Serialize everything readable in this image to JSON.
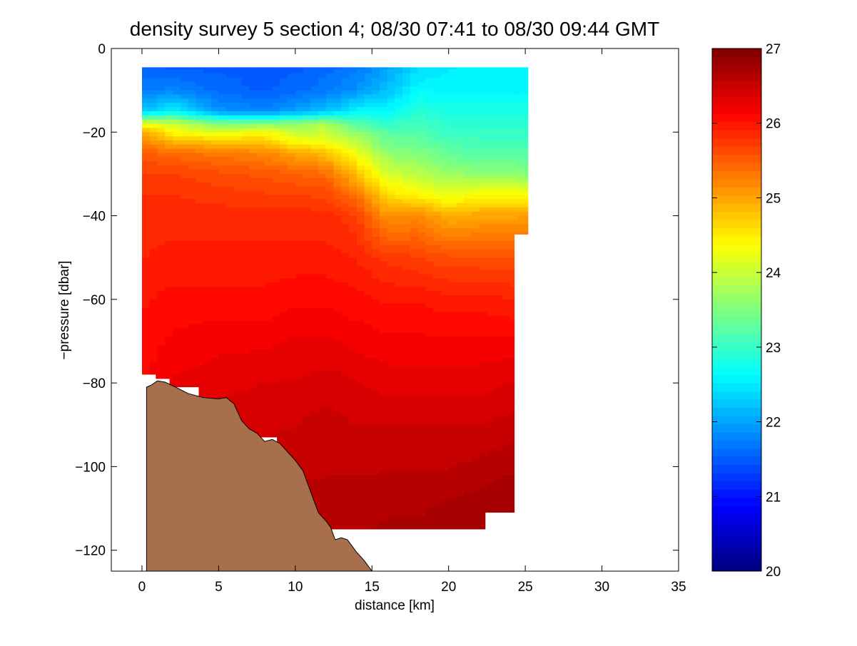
{
  "chart_data": {
    "type": "heatmap",
    "title": "density survey 5 section 4; 08/30 07:41 to 08/30 09:44 GMT",
    "xlabel": "distance [km]",
    "ylabel": "−pressure [dbar]",
    "xlim": [
      -2,
      35
    ],
    "ylim": [
      -125,
      0
    ],
    "xticks": [
      0,
      5,
      10,
      15,
      20,
      25,
      30,
      35
    ],
    "yticks": [
      -120,
      -100,
      -80,
      -60,
      -40,
      -20,
      0
    ],
    "ytick_labels": [
      "−120",
      "−100",
      "−80",
      "−60",
      "−40",
      "−20",
      "0"
    ],
    "colorbar": {
      "min": 20,
      "max": 27,
      "ticks": [
        20,
        21,
        22,
        23,
        24,
        25,
        26,
        27
      ],
      "colormap": "jet"
    },
    "grid": false,
    "data_region_outline": [
      [
        0,
        -4.5
      ],
      [
        25.2,
        -4.5
      ],
      [
        25.2,
        -44.5
      ],
      [
        24.3,
        -44.5
      ],
      [
        24.3,
        -111
      ],
      [
        22.4,
        -111
      ],
      [
        22.4,
        -115
      ],
      [
        11.2,
        -115
      ],
      [
        11.2,
        -111
      ],
      [
        9.4,
        -111
      ],
      [
        9.4,
        -97
      ],
      [
        8.8,
        -97
      ],
      [
        8.8,
        -93
      ],
      [
        6.5,
        -93
      ],
      [
        6.5,
        -90
      ],
      [
        5.7,
        -90
      ],
      [
        5.7,
        -84
      ],
      [
        3.7,
        -84
      ],
      [
        3.7,
        -81
      ],
      [
        1.8,
        -81
      ],
      [
        1.8,
        -79
      ],
      [
        0.9,
        -79
      ],
      [
        0.9,
        -78
      ],
      [
        0,
        -78
      ]
    ],
    "density_profiles": [
      {
        "x": 0,
        "depth": [
          -4.5,
          -10,
          -15,
          -18,
          -20,
          -25,
          -30,
          -35,
          -40,
          -50,
          -60,
          -70,
          -78
        ],
        "density": [
          21.6,
          21.7,
          22.2,
          24.2,
          25.0,
          25.5,
          25.7,
          25.8,
          25.85,
          25.9,
          26.0,
          26.05,
          26.1
        ]
      },
      {
        "x": 2,
        "depth": [
          -4.5,
          -10,
          -15,
          -18,
          -22,
          -25,
          -30,
          -35,
          -40,
          -50,
          -60,
          -70,
          -80
        ],
        "density": [
          21.5,
          21.8,
          22.6,
          24.0,
          24.8,
          25.4,
          25.7,
          25.8,
          25.85,
          25.95,
          26.05,
          26.15,
          26.25
        ]
      },
      {
        "x": 5,
        "depth": [
          -4.5,
          -10,
          -15,
          -18,
          -22,
          -25,
          -30,
          -35,
          -40,
          -50,
          -60,
          -70,
          -80,
          -84
        ],
        "density": [
          21.5,
          21.6,
          21.9,
          23.5,
          24.7,
          25.3,
          25.6,
          25.75,
          25.85,
          25.95,
          26.05,
          26.2,
          26.3,
          26.35
        ]
      },
      {
        "x": 8,
        "depth": [
          -4.5,
          -10,
          -15,
          -18,
          -20,
          -25,
          -30,
          -35,
          -40,
          -50,
          -60,
          -70,
          -80,
          -93
        ],
        "density": [
          21.5,
          21.5,
          21.8,
          23.5,
          24.4,
          25.2,
          25.55,
          25.7,
          25.85,
          25.95,
          26.05,
          26.2,
          26.35,
          26.45
        ]
      },
      {
        "x": 10,
        "depth": [
          -4.5,
          -10,
          -15,
          -18,
          -22,
          -25,
          -30,
          -35,
          -40,
          -50,
          -60,
          -70,
          -80,
          -90,
          -100,
          -111
        ],
        "density": [
          21.5,
          21.6,
          22.0,
          23.6,
          24.3,
          25.0,
          25.45,
          25.7,
          25.85,
          25.95,
          26.1,
          26.25,
          26.35,
          26.45,
          26.55,
          26.6
        ]
      },
      {
        "x": 12,
        "depth": [
          -4.5,
          -10,
          -15,
          -18,
          -22,
          -25,
          -30,
          -35,
          -40,
          -50,
          -60,
          -70,
          -80,
          -90,
          -100,
          -110,
          -115
        ],
        "density": [
          21.6,
          21.7,
          22.2,
          23.8,
          24.2,
          24.8,
          25.4,
          25.65,
          25.85,
          25.95,
          26.1,
          26.25,
          26.4,
          26.5,
          26.55,
          26.6,
          26.65
        ]
      },
      {
        "x": 14,
        "depth": [
          -4.5,
          -10,
          -15,
          -20,
          -25,
          -30,
          -35,
          -40,
          -50,
          -60,
          -70,
          -80,
          -90,
          -100,
          -110,
          -115
        ],
        "density": [
          21.7,
          21.9,
          22.6,
          23.6,
          24.3,
          24.8,
          25.35,
          25.7,
          25.9,
          26.05,
          26.2,
          26.35,
          26.45,
          26.55,
          26.6,
          26.65
        ]
      },
      {
        "x": 16,
        "depth": [
          -4.5,
          -10,
          -15,
          -20,
          -25,
          -30,
          -35,
          -40,
          -50,
          -60,
          -70,
          -80,
          -90,
          -100,
          -110,
          -115
        ],
        "density": [
          22.0,
          22.2,
          22.6,
          23.2,
          23.6,
          24.1,
          24.6,
          25.1,
          25.75,
          26.0,
          26.15,
          26.3,
          26.45,
          26.55,
          26.65,
          26.7
        ]
      },
      {
        "x": 18,
        "depth": [
          -4.5,
          -10,
          -15,
          -20,
          -25,
          -30,
          -35,
          -40,
          -50,
          -60,
          -70,
          -80,
          -90,
          -100,
          -110,
          -115
        ],
        "density": [
          22.4,
          22.6,
          22.9,
          23.2,
          23.5,
          23.9,
          24.4,
          25.2,
          25.7,
          26.0,
          26.15,
          26.3,
          26.45,
          26.55,
          26.65,
          26.7
        ]
      },
      {
        "x": 20,
        "depth": [
          -4.5,
          -10,
          -15,
          -20,
          -25,
          -30,
          -35,
          -40,
          -50,
          -60,
          -70,
          -80,
          -90,
          -100,
          -110,
          -115
        ],
        "density": [
          22.5,
          22.6,
          22.8,
          23.0,
          23.3,
          23.7,
          24.2,
          24.9,
          25.6,
          25.95,
          26.15,
          26.3,
          26.45,
          26.55,
          26.7,
          26.75
        ]
      },
      {
        "x": 22,
        "depth": [
          -4.5,
          -10,
          -15,
          -20,
          -25,
          -30,
          -35,
          -40,
          -50,
          -60,
          -70,
          -80,
          -90,
          -100,
          -111
        ],
        "density": [
          22.6,
          22.6,
          22.8,
          23.0,
          23.2,
          23.6,
          24.4,
          25.0,
          25.6,
          25.95,
          26.15,
          26.3,
          26.45,
          26.6,
          26.75
        ]
      },
      {
        "x": 24.3,
        "depth": [
          -4.5,
          -10,
          -15,
          -20,
          -25,
          -30,
          -35,
          -40,
          -50,
          -60,
          -70,
          -80,
          -90,
          -100,
          -111
        ],
        "density": [
          22.6,
          22.6,
          22.8,
          23.0,
          23.2,
          23.6,
          24.4,
          25.0,
          25.6,
          25.9,
          26.15,
          26.35,
          26.5,
          26.65,
          26.8
        ]
      },
      {
        "x": 25.2,
        "depth": [
          -4.5,
          -10,
          -15,
          -20,
          -25,
          -30,
          -35,
          -40,
          -44.5
        ],
        "density": [
          22.6,
          22.6,
          22.8,
          23.0,
          23.2,
          23.5,
          24.4,
          25.0,
          25.3
        ]
      }
    ],
    "bathymetry": [
      [
        0.3,
        -125
      ],
      [
        0.3,
        -81
      ],
      [
        0.6,
        -80.5
      ],
      [
        1,
        -79.5
      ],
      [
        1.5,
        -79.8
      ],
      [
        2.2,
        -81
      ],
      [
        3,
        -82.5
      ],
      [
        4,
        -83.5
      ],
      [
        5,
        -83.8
      ],
      [
        5.5,
        -83.5
      ],
      [
        6,
        -85
      ],
      [
        6.5,
        -89
      ],
      [
        7,
        -91
      ],
      [
        7.5,
        -92
      ],
      [
        8,
        -94
      ],
      [
        8.5,
        -93.5
      ],
      [
        9,
        -94.5
      ],
      [
        9.5,
        -96.5
      ],
      [
        10,
        -98.5
      ],
      [
        10.5,
        -101
      ],
      [
        11,
        -106
      ],
      [
        11.5,
        -111
      ],
      [
        12,
        -113
      ],
      [
        12.3,
        -114.5
      ],
      [
        12.6,
        -117.5
      ],
      [
        13,
        -117
      ],
      [
        13.4,
        -117.5
      ],
      [
        14,
        -120.5
      ],
      [
        14.5,
        -122.5
      ],
      [
        15,
        -125
      ]
    ],
    "bathymetry_color": "#a86f4c"
  }
}
